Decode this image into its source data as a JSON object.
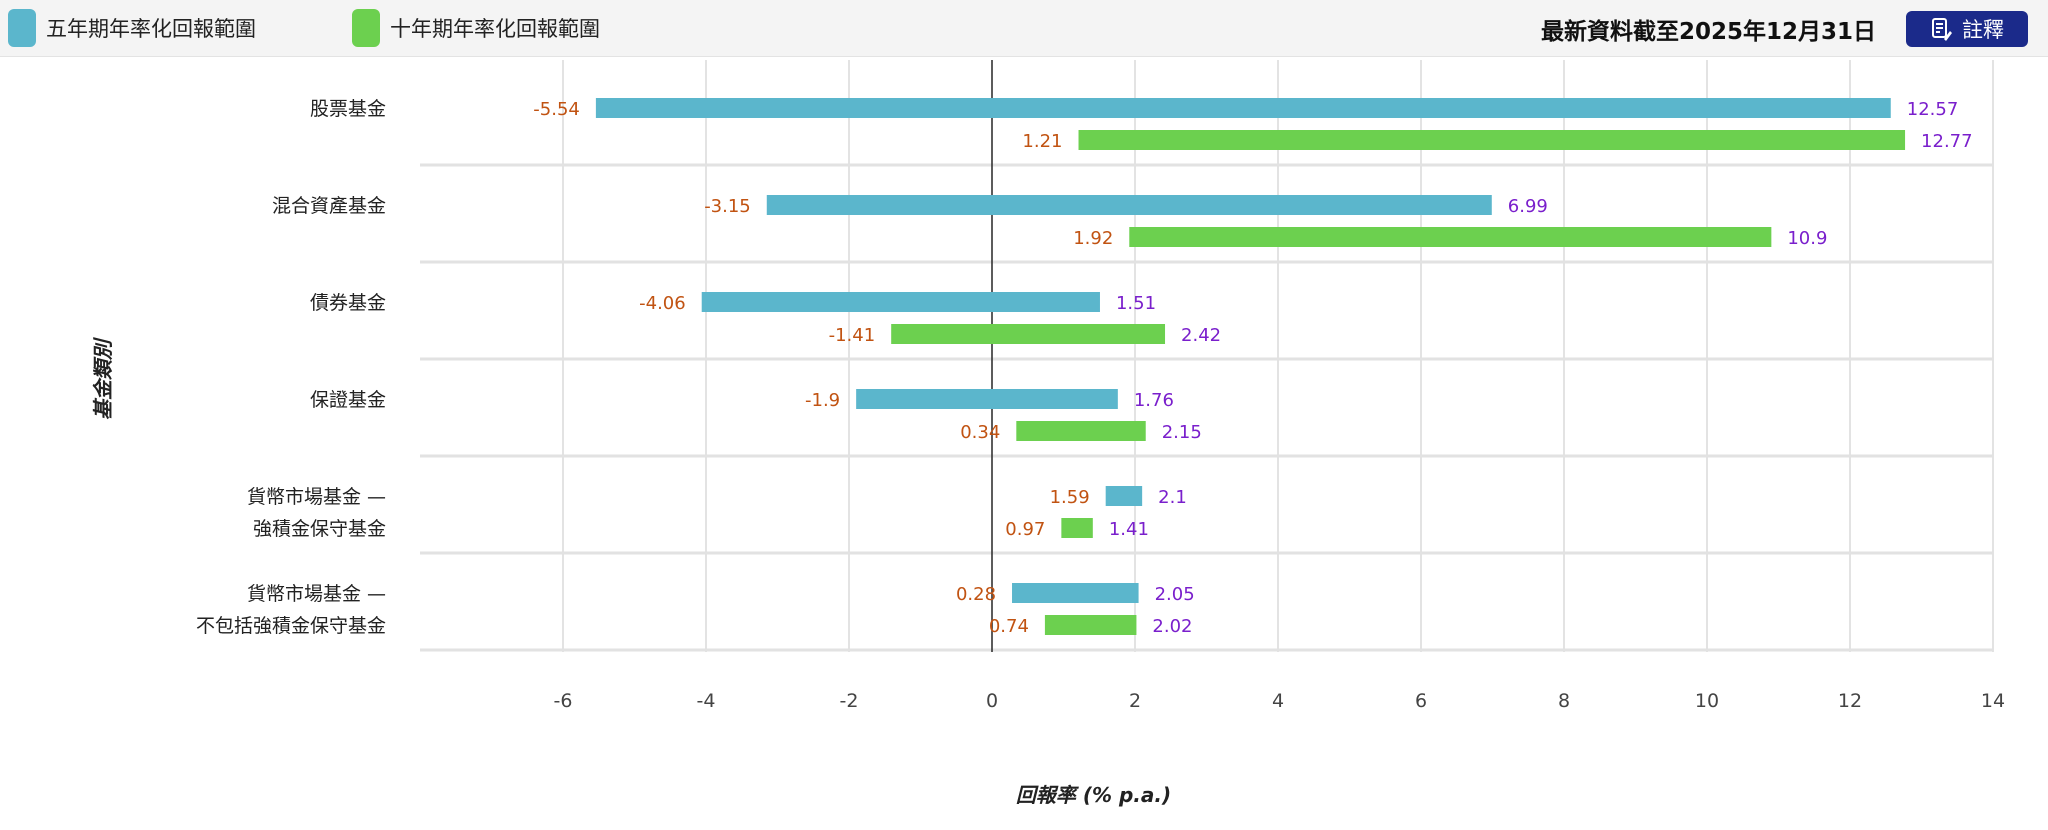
{
  "legend": {
    "five_year": {
      "label": "五年期年率化回報範圍",
      "color": "#5bb6cc"
    },
    "ten_year": {
      "label": "十年期年率化回報範圍",
      "color": "#6cd04f"
    }
  },
  "as_of": "最新資料截至2025年12月31日",
  "notes_button": {
    "label": "註釋",
    "icon": "notes-icon"
  },
  "chart_data": {
    "type": "bar",
    "orientation": "horizontal-range",
    "ylabel": "基金類別",
    "xlabel": "回報率 (% p.a.)",
    "xlim": [
      -8,
      14
    ],
    "xticks": [
      -6,
      -4,
      -2,
      0,
      2,
      4,
      6,
      8,
      10,
      12,
      14
    ],
    "categories": [
      [
        "股票基金"
      ],
      [
        "混合資產基金"
      ],
      [
        "債券基金"
      ],
      [
        "保證基金"
      ],
      [
        "貨幣市場基金 —",
        "強積金保守基金"
      ],
      [
        "貨幣市場基金 —",
        "不包括強積金保守基金"
      ]
    ],
    "series": [
      {
        "name": "五年期年率化回報範圍",
        "color": "#5bb6cc",
        "ranges": [
          [
            -5.54,
            12.57
          ],
          [
            -3.15,
            6.99
          ],
          [
            -4.06,
            1.51
          ],
          [
            -1.9,
            1.76
          ],
          [
            1.59,
            2.1
          ],
          [
            0.28,
            2.05
          ]
        ],
        "labels": [
          [
            "-5.54",
            "12.57"
          ],
          [
            "-3.15",
            "6.99"
          ],
          [
            "-4.06",
            "1.51"
          ],
          [
            "-1.9",
            "1.76"
          ],
          [
            "1.59",
            "2.1"
          ],
          [
            "0.28",
            "2.05"
          ]
        ]
      },
      {
        "name": "十年期年率化回報範圍",
        "color": "#6cd04f",
        "ranges": [
          [
            1.21,
            12.77
          ],
          [
            1.92,
            10.9
          ],
          [
            -1.41,
            2.42
          ],
          [
            0.34,
            2.15
          ],
          [
            0.97,
            1.41
          ],
          [
            0.74,
            2.02
          ]
        ],
        "labels": [
          [
            "1.21",
            "12.77"
          ],
          [
            "1.92",
            "10.9"
          ],
          [
            "-1.41",
            "2.42"
          ],
          [
            "0.34",
            "2.15"
          ],
          [
            "0.97",
            "1.41"
          ],
          [
            "0.74",
            "2.02"
          ]
        ]
      }
    ],
    "colors": {
      "min_label": "#c15312",
      "max_label": "#7a1fcc",
      "zero_line": "#333333",
      "grid": "#d0d0d0"
    }
  }
}
